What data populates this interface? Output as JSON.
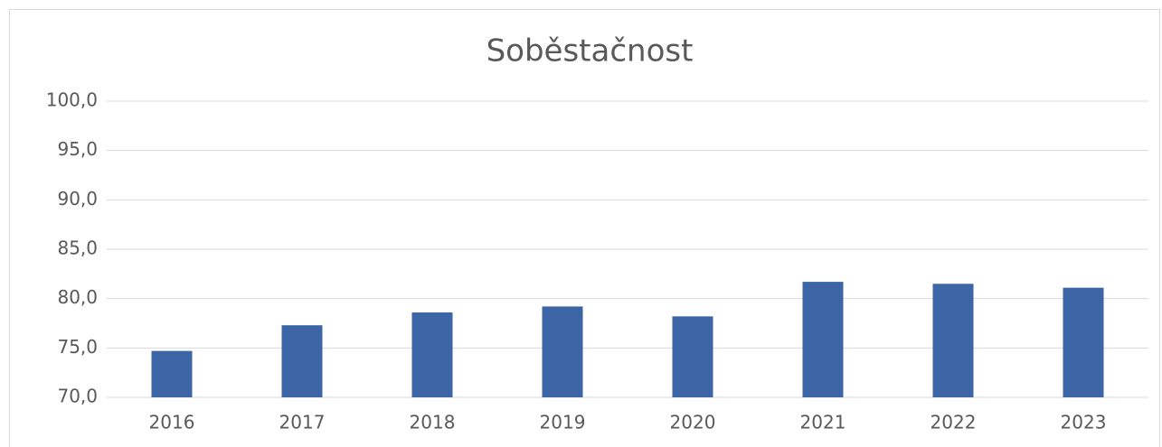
{
  "chart_data": {
    "type": "bar",
    "title": "Soběstačnost",
    "categories": [
      "2016",
      "2017",
      "2018",
      "2019",
      "2020",
      "2021",
      "2022",
      "2023"
    ],
    "values": [
      74.7,
      77.3,
      78.6,
      79.2,
      78.2,
      81.7,
      81.5,
      81.1
    ],
    "color": "#3c65a6",
    "ylim": [
      70,
      100
    ],
    "yticks": [
      {
        "value": 70,
        "label": "70,0"
      },
      {
        "value": 75,
        "label": "75,0"
      },
      {
        "value": 80,
        "label": "80,0"
      },
      {
        "value": 85,
        "label": "85,0"
      },
      {
        "value": 90,
        "label": "90,0"
      },
      {
        "value": 95,
        "label": "95,0"
      },
      {
        "value": 100,
        "label": "100,0"
      }
    ],
    "grid": true
  }
}
